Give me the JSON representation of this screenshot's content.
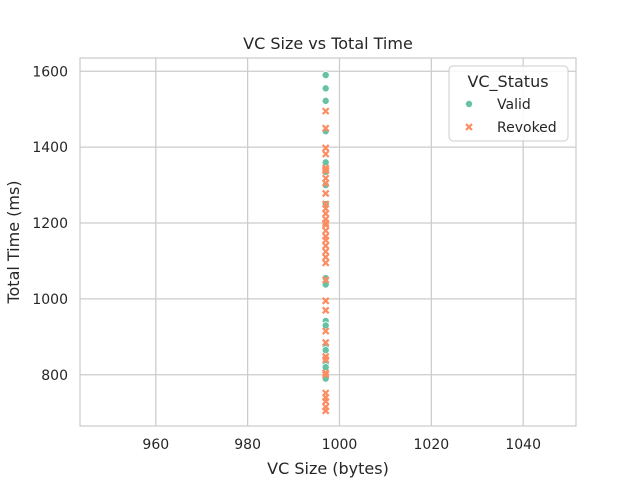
{
  "chart_data": {
    "type": "scatter",
    "title": "VC Size vs Total Time",
    "xlabel": "VC Size (bytes)",
    "ylabel": "Total Time (ms)",
    "xlim": [
      943.5,
      1051.5
    ],
    "ylim": [
      665,
      1635
    ],
    "xticks": [
      960,
      980,
      1000,
      1020,
      1040
    ],
    "yticks": [
      800,
      1000,
      1200,
      1400,
      1600
    ],
    "grid": true,
    "legend": {
      "title": "VC_Status",
      "placement": "top-right"
    },
    "series": [
      {
        "name": "Valid",
        "marker": "circle",
        "color": "#66c2a5",
        "x": [
          997,
          997,
          997,
          997,
          997,
          997,
          997,
          997,
          997,
          997,
          997,
          997,
          997,
          997,
          997,
          997,
          997
        ],
        "y": [
          1590,
          1555,
          1522,
          1442,
          1360,
          1335,
          1300,
          1055,
          1038,
          942,
          930,
          875,
          865,
          830,
          820,
          790,
          1250
        ]
      },
      {
        "name": "Revoked",
        "marker": "x",
        "color": "#fc8d62",
        "x": [
          997,
          997,
          997,
          997,
          997,
          997,
          997,
          997,
          997,
          997,
          997,
          997,
          997,
          997,
          997,
          997,
          997,
          997,
          997,
          997,
          997,
          997,
          997,
          997,
          997,
          997,
          997,
          997,
          997,
          997,
          997,
          997,
          997,
          997,
          997,
          997,
          997
        ],
        "y": [
          1495,
          1450,
          1398,
          1382,
          1345,
          1338,
          1318,
          1305,
          1278,
          1250,
          1238,
          1225,
          1210,
          1195,
          1180,
          1165,
          1155,
          1140,
          1125,
          1110,
          1095,
          1050,
          995,
          970,
          915,
          885,
          848,
          840,
          805,
          800,
          752,
          740,
          730,
          715,
          705,
          1340,
          1200
        ]
      }
    ]
  }
}
